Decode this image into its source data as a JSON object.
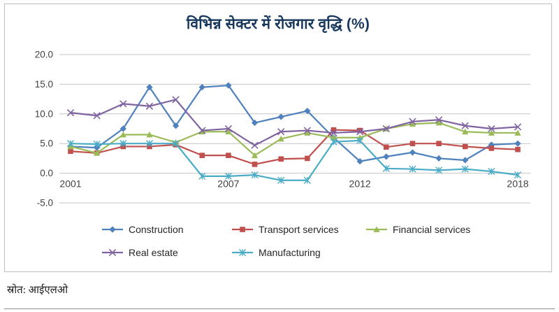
{
  "title": "विभिन्न सेक्टर में रोजगार वृद्धि (%)",
  "source": "स्रोत: आईएलओ",
  "axis_text_color": "#404040",
  "gridline_color": "#c4c4c4",
  "chart_data": {
    "type": "line",
    "title": "विभिन्न सेक्टर में रोजगार वृद्धि (%)",
    "xlabel": "",
    "ylabel": "",
    "x": [
      2001,
      2002,
      2003,
      2004,
      2005,
      2006,
      2007,
      2008,
      2009,
      2010,
      2011,
      2012,
      2013,
      2014,
      2015,
      2016,
      2017,
      2018
    ],
    "x_ticks": [
      2001,
      2007,
      2012,
      2018
    ],
    "y_ticks": [
      20,
      15,
      10,
      5,
      0,
      -5
    ],
    "ylim": [
      -5,
      20
    ],
    "grid": true,
    "legend_position": "bottom",
    "series": [
      {
        "name": "Construction",
        "color": "#4f81bd",
        "marker": "diamond",
        "values": [
          4.5,
          4.3,
          7.5,
          14.5,
          8.0,
          14.5,
          14.8,
          8.5,
          9.5,
          10.5,
          6.0,
          2.0,
          2.8,
          3.5,
          2.5,
          2.2,
          4.8,
          5.0
        ]
      },
      {
        "name": "Transport services",
        "color": "#c0504d",
        "marker": "square",
        "values": [
          3.7,
          3.4,
          4.5,
          4.5,
          4.8,
          3.0,
          3.0,
          1.5,
          2.4,
          2.5,
          7.3,
          7.2,
          4.4,
          5.0,
          5.0,
          4.5,
          4.2,
          4.0
        ]
      },
      {
        "name": "Financial services",
        "color": "#9bbb59",
        "marker": "triangle",
        "values": [
          4.5,
          3.4,
          6.5,
          6.5,
          5.2,
          7.0,
          7.0,
          3.0,
          5.8,
          6.8,
          6.0,
          6.0,
          7.5,
          8.3,
          8.5,
          7.0,
          6.8,
          6.8
        ]
      },
      {
        "name": "Real estate",
        "color": "#8064a2",
        "marker": "x",
        "values": [
          10.2,
          9.7,
          11.7,
          11.3,
          12.4,
          7.2,
          7.5,
          4.7,
          7.0,
          7.2,
          6.8,
          7.0,
          7.5,
          8.7,
          9.0,
          8.0,
          7.5,
          7.8
        ]
      },
      {
        "name": "Manufacturing",
        "color": "#4bacc6",
        "marker": "star",
        "values": [
          5.0,
          4.9,
          5.0,
          5.0,
          5.0,
          -0.5,
          -0.5,
          -0.3,
          -1.2,
          -1.2,
          5.3,
          5.5,
          0.8,
          0.7,
          0.5,
          0.7,
          0.3,
          -0.3
        ]
      }
    ]
  }
}
